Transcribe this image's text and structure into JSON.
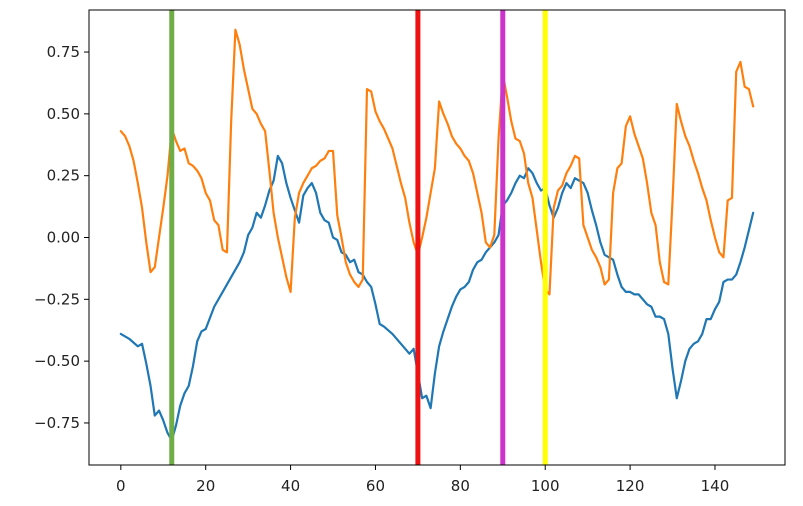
{
  "chart_data": {
    "type": "line",
    "title": "",
    "xlabel": "",
    "ylabel": "",
    "xlim": [
      -7.5,
      156.5
    ],
    "ylim": [
      -0.92,
      0.92
    ],
    "xticks": [
      0,
      20,
      40,
      60,
      80,
      100,
      120,
      140
    ],
    "xtick_labels": [
      "0",
      "20",
      "40",
      "60",
      "80",
      "100",
      "120",
      "140"
    ],
    "yticks": [
      -0.75,
      -0.5,
      -0.25,
      0.0,
      0.25,
      0.5,
      0.75
    ],
    "ytick_labels": [
      "−0.75",
      "−0.50",
      "−0.25",
      "0.00",
      "0.25",
      "0.50",
      "0.75"
    ],
    "grid": false,
    "series": [
      {
        "color": "#1f77b4",
        "points": [
          [
            0,
            -0.39
          ],
          [
            2,
            -0.41
          ],
          [
            4,
            -0.44
          ],
          [
            5,
            -0.43
          ],
          [
            6,
            -0.51
          ],
          [
            7,
            -0.6
          ],
          [
            8,
            -0.72
          ],
          [
            9,
            -0.7
          ],
          [
            10,
            -0.74
          ],
          [
            11,
            -0.79
          ],
          [
            12,
            -0.82
          ],
          [
            13,
            -0.76
          ],
          [
            14,
            -0.68
          ],
          [
            15,
            -0.63
          ],
          [
            16,
            -0.6
          ],
          [
            17,
            -0.52
          ],
          [
            18,
            -0.42
          ],
          [
            19,
            -0.38
          ],
          [
            20,
            -0.37
          ],
          [
            22,
            -0.28
          ],
          [
            24,
            -0.22
          ],
          [
            26,
            -0.16
          ],
          [
            28,
            -0.1
          ],
          [
            29,
            -0.06
          ],
          [
            30,
            0.01
          ],
          [
            31,
            0.04
          ],
          [
            32,
            0.1
          ],
          [
            33,
            0.08
          ],
          [
            34,
            0.13
          ],
          [
            35,
            0.19
          ],
          [
            36,
            0.23
          ],
          [
            37,
            0.33
          ],
          [
            38,
            0.3
          ],
          [
            39,
            0.22
          ],
          [
            40,
            0.16
          ],
          [
            41,
            0.11
          ],
          [
            42,
            0.06
          ],
          [
            43,
            0.17
          ],
          [
            44,
            0.2
          ],
          [
            45,
            0.22
          ],
          [
            46,
            0.18
          ],
          [
            47,
            0.1
          ],
          [
            48,
            0.07
          ],
          [
            49,
            0.06
          ],
          [
            50,
            0.0
          ],
          [
            51,
            -0.01
          ],
          [
            52,
            -0.06
          ],
          [
            53,
            -0.07
          ],
          [
            54,
            -0.1
          ],
          [
            55,
            -0.09
          ],
          [
            56,
            -0.14
          ],
          [
            57,
            -0.15
          ],
          [
            58,
            -0.18
          ],
          [
            59,
            -0.2
          ],
          [
            60,
            -0.27
          ],
          [
            61,
            -0.35
          ],
          [
            62,
            -0.36
          ],
          [
            64,
            -0.39
          ],
          [
            66,
            -0.43
          ],
          [
            68,
            -0.47
          ],
          [
            69,
            -0.45
          ],
          [
            70,
            -0.55
          ],
          [
            71,
            -0.65
          ],
          [
            72,
            -0.64
          ],
          [
            73,
            -0.69
          ],
          [
            74,
            -0.55
          ],
          [
            75,
            -0.44
          ],
          [
            76,
            -0.38
          ],
          [
            77,
            -0.33
          ],
          [
            78,
            -0.28
          ],
          [
            79,
            -0.24
          ],
          [
            80,
            -0.21
          ],
          [
            81,
            -0.2
          ],
          [
            82,
            -0.18
          ],
          [
            83,
            -0.13
          ],
          [
            84,
            -0.1
          ],
          [
            85,
            -0.09
          ],
          [
            86,
            -0.06
          ],
          [
            87,
            -0.04
          ],
          [
            88,
            -0.02
          ],
          [
            89,
            0.01
          ],
          [
            90,
            0.13
          ],
          [
            91,
            0.15
          ],
          [
            92,
            0.18
          ],
          [
            93,
            0.22
          ],
          [
            94,
            0.25
          ],
          [
            95,
            0.24
          ],
          [
            96,
            0.28
          ],
          [
            97,
            0.26
          ],
          [
            98,
            0.22
          ],
          [
            99,
            0.19
          ],
          [
            100,
            0.2
          ],
          [
            101,
            0.13
          ],
          [
            102,
            0.08
          ],
          [
            103,
            0.12
          ],
          [
            104,
            0.18
          ],
          [
            105,
            0.22
          ],
          [
            106,
            0.2
          ],
          [
            107,
            0.24
          ],
          [
            108,
            0.23
          ],
          [
            109,
            0.22
          ],
          [
            110,
            0.18
          ],
          [
            111,
            0.11
          ],
          [
            112,
            0.05
          ],
          [
            113,
            -0.02
          ],
          [
            114,
            -0.07
          ],
          [
            115,
            -0.08
          ],
          [
            116,
            -0.09
          ],
          [
            117,
            -0.15
          ],
          [
            118,
            -0.2
          ],
          [
            119,
            -0.22
          ],
          [
            120,
            -0.22
          ],
          [
            121,
            -0.23
          ],
          [
            122,
            -0.23
          ],
          [
            123,
            -0.25
          ],
          [
            124,
            -0.27
          ],
          [
            125,
            -0.28
          ],
          [
            126,
            -0.32
          ],
          [
            127,
            -0.32
          ],
          [
            128,
            -0.33
          ],
          [
            129,
            -0.39
          ],
          [
            130,
            -0.53
          ],
          [
            131,
            -0.65
          ],
          [
            132,
            -0.58
          ],
          [
            133,
            -0.5
          ],
          [
            134,
            -0.45
          ],
          [
            135,
            -0.43
          ],
          [
            136,
            -0.42
          ],
          [
            137,
            -0.39
          ],
          [
            138,
            -0.33
          ],
          [
            139,
            -0.33
          ],
          [
            140,
            -0.29
          ],
          [
            141,
            -0.26
          ],
          [
            142,
            -0.18
          ],
          [
            143,
            -0.17
          ],
          [
            144,
            -0.17
          ],
          [
            145,
            -0.15
          ],
          [
            146,
            -0.1
          ],
          [
            147,
            -0.04
          ],
          [
            148,
            0.03
          ],
          [
            149,
            0.1
          ]
        ]
      },
      {
        "color": "#ff7f0e",
        "points": [
          [
            0,
            0.43
          ],
          [
            1,
            0.41
          ],
          [
            2,
            0.37
          ],
          [
            3,
            0.31
          ],
          [
            4,
            0.22
          ],
          [
            5,
            0.12
          ],
          [
            6,
            -0.02
          ],
          [
            7,
            -0.14
          ],
          [
            8,
            -0.12
          ],
          [
            9,
            0.0
          ],
          [
            10,
            0.12
          ],
          [
            11,
            0.25
          ],
          [
            12,
            0.44
          ],
          [
            13,
            0.39
          ],
          [
            14,
            0.35
          ],
          [
            15,
            0.36
          ],
          [
            16,
            0.3
          ],
          [
            17,
            0.29
          ],
          [
            18,
            0.27
          ],
          [
            19,
            0.24
          ],
          [
            20,
            0.18
          ],
          [
            21,
            0.15
          ],
          [
            22,
            0.07
          ],
          [
            23,
            0.05
          ],
          [
            24,
            -0.05
          ],
          [
            25,
            -0.06
          ],
          [
            26,
            0.47
          ],
          [
            27,
            0.84
          ],
          [
            28,
            0.78
          ],
          [
            29,
            0.68
          ],
          [
            30,
            0.6
          ],
          [
            31,
            0.52
          ],
          [
            32,
            0.5
          ],
          [
            33,
            0.46
          ],
          [
            34,
            0.43
          ],
          [
            35,
            0.27
          ],
          [
            36,
            0.1
          ],
          [
            37,
            0.0
          ],
          [
            38,
            -0.08
          ],
          [
            39,
            -0.16
          ],
          [
            40,
            -0.22
          ],
          [
            41,
            0.08
          ],
          [
            42,
            0.18
          ],
          [
            43,
            0.22
          ],
          [
            44,
            0.25
          ],
          [
            45,
            0.28
          ],
          [
            46,
            0.29
          ],
          [
            47,
            0.31
          ],
          [
            48,
            0.32
          ],
          [
            49,
            0.35
          ],
          [
            50,
            0.35
          ],
          [
            51,
            0.09
          ],
          [
            52,
            0.0
          ],
          [
            53,
            -0.1
          ],
          [
            54,
            -0.15
          ],
          [
            55,
            -0.18
          ],
          [
            56,
            -0.2
          ],
          [
            57,
            -0.17
          ],
          [
            58,
            0.6
          ],
          [
            59,
            0.59
          ],
          [
            60,
            0.51
          ],
          [
            61,
            0.47
          ],
          [
            62,
            0.44
          ],
          [
            63,
            0.4
          ],
          [
            64,
            0.36
          ],
          [
            65,
            0.29
          ],
          [
            66,
            0.22
          ],
          [
            67,
            0.16
          ],
          [
            68,
            0.06
          ],
          [
            69,
            -0.02
          ],
          [
            70,
            -0.07
          ],
          [
            71,
            0.0
          ],
          [
            72,
            0.08
          ],
          [
            73,
            0.18
          ],
          [
            74,
            0.28
          ],
          [
            75,
            0.55
          ],
          [
            76,
            0.5
          ],
          [
            77,
            0.46
          ],
          [
            78,
            0.41
          ],
          [
            79,
            0.38
          ],
          [
            80,
            0.36
          ],
          [
            81,
            0.33
          ],
          [
            82,
            0.31
          ],
          [
            83,
            0.26
          ],
          [
            84,
            0.18
          ],
          [
            85,
            0.1
          ],
          [
            86,
            -0.02
          ],
          [
            87,
            -0.04
          ],
          [
            88,
            0.01
          ],
          [
            89,
            0.4
          ],
          [
            90,
            0.66
          ],
          [
            91,
            0.57
          ],
          [
            92,
            0.47
          ],
          [
            93,
            0.4
          ],
          [
            94,
            0.39
          ],
          [
            95,
            0.34
          ],
          [
            96,
            0.22
          ],
          [
            97,
            0.16
          ],
          [
            98,
            0.03
          ],
          [
            99,
            -0.1
          ],
          [
            100,
            -0.21
          ],
          [
            101,
            -0.23
          ],
          [
            102,
            0.12
          ],
          [
            103,
            0.19
          ],
          [
            104,
            0.21
          ],
          [
            105,
            0.26
          ],
          [
            106,
            0.29
          ],
          [
            107,
            0.33
          ],
          [
            108,
            0.32
          ],
          [
            109,
            0.05
          ],
          [
            110,
            0.0
          ],
          [
            111,
            -0.05
          ],
          [
            112,
            -0.08
          ],
          [
            113,
            -0.12
          ],
          [
            114,
            -0.19
          ],
          [
            115,
            -0.17
          ],
          [
            116,
            0.18
          ],
          [
            117,
            0.28
          ],
          [
            118,
            0.3
          ],
          [
            119,
            0.45
          ],
          [
            120,
            0.49
          ],
          [
            121,
            0.42
          ],
          [
            122,
            0.37
          ],
          [
            123,
            0.32
          ],
          [
            124,
            0.22
          ],
          [
            125,
            0.1
          ],
          [
            126,
            0.05
          ],
          [
            127,
            -0.1
          ],
          [
            128,
            -0.18
          ],
          [
            129,
            -0.19
          ],
          [
            130,
            0.15
          ],
          [
            131,
            0.54
          ],
          [
            132,
            0.47
          ],
          [
            133,
            0.41
          ],
          [
            134,
            0.37
          ],
          [
            135,
            0.31
          ],
          [
            136,
            0.26
          ],
          [
            137,
            0.2
          ],
          [
            138,
            0.15
          ],
          [
            139,
            0.07
          ],
          [
            140,
            0.0
          ],
          [
            141,
            -0.06
          ],
          [
            142,
            -0.08
          ],
          [
            143,
            0.15
          ],
          [
            144,
            0.16
          ],
          [
            145,
            0.67
          ],
          [
            146,
            0.71
          ],
          [
            147,
            0.61
          ],
          [
            148,
            0.6
          ],
          [
            149,
            0.53
          ]
        ]
      }
    ],
    "markers": [
      {
        "x": 12,
        "color": "#70ad47"
      },
      {
        "x": 70,
        "color": "#ee1111"
      },
      {
        "x": 90,
        "color": "#cc33cc"
      },
      {
        "x": 100,
        "color": "#ffff00"
      }
    ]
  }
}
